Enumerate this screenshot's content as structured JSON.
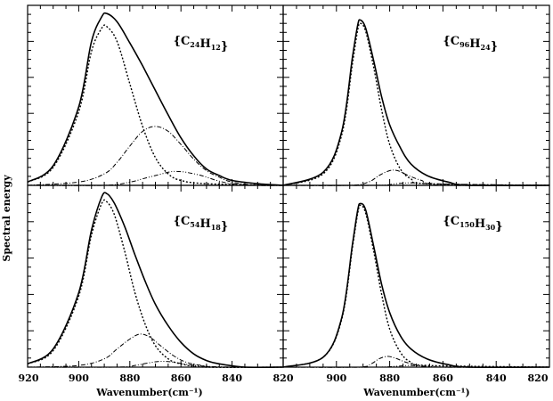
{
  "chart_data": {
    "type": "line",
    "xlabel": "Wavenumber(cm⁻¹)",
    "ylabel": "Spectral energy",
    "x_ticks": [
      920,
      900,
      880,
      860,
      840,
      820
    ],
    "xlim": [
      920,
      820
    ],
    "ylim": [
      0,
      1.1
    ],
    "grid": false,
    "line_styles": [
      "solid",
      "dotted",
      "dash-dot",
      "dash-dot-dot"
    ],
    "panels": [
      {
        "id": "top-left",
        "label_prefix": "{C",
        "label_c": "24",
        "label_mid": "H",
        "label_h": "12",
        "label_suffix": "}",
        "series": [
          {
            "style": "solid",
            "points": [
              [
                920,
                0.02
              ],
              [
                910,
                0.12
              ],
              [
                900,
                0.48
              ],
              [
                895,
                0.88
              ],
              [
                891,
                1.03
              ],
              [
                889,
                1.05
              ],
              [
                885,
                1.0
              ],
              [
                880,
                0.87
              ],
              [
                875,
                0.73
              ],
              [
                870,
                0.58
              ],
              [
                865,
                0.43
              ],
              [
                860,
                0.29
              ],
              [
                855,
                0.18
              ],
              [
                850,
                0.1
              ],
              [
                845,
                0.06
              ],
              [
                840,
                0.03
              ],
              [
                830,
                0.01
              ],
              [
                820,
                0.0
              ]
            ]
          },
          {
            "style": "dotted",
            "points": [
              [
                920,
                0.02
              ],
              [
                910,
                0.11
              ],
              [
                900,
                0.45
              ],
              [
                895,
                0.82
              ],
              [
                891,
                0.96
              ],
              [
                889,
                0.97
              ],
              [
                885,
                0.88
              ],
              [
                880,
                0.62
              ],
              [
                875,
                0.36
              ],
              [
                870,
                0.17
              ],
              [
                865,
                0.07
              ],
              [
                860,
                0.03
              ],
              [
                850,
                0.01
              ],
              [
                820,
                0.0
              ]
            ]
          },
          {
            "style": "dash-dot",
            "points": [
              [
                920,
                0.0
              ],
              [
                900,
                0.02
              ],
              [
                890,
                0.07
              ],
              [
                885,
                0.14
              ],
              [
                880,
                0.24
              ],
              [
                875,
                0.33
              ],
              [
                870,
                0.36
              ],
              [
                865,
                0.33
              ],
              [
                860,
                0.25
              ],
              [
                855,
                0.16
              ],
              [
                850,
                0.09
              ],
              [
                845,
                0.05
              ],
              [
                840,
                0.02
              ],
              [
                830,
                0.0
              ],
              [
                820,
                0.0
              ]
            ]
          },
          {
            "style": "dash-dot-dot",
            "points": [
              [
                920,
                0.0
              ],
              [
                890,
                0.0
              ],
              [
                880,
                0.02
              ],
              [
                875,
                0.04
              ],
              [
                870,
                0.06
              ],
              [
                865,
                0.08
              ],
              [
                862,
                0.085
              ],
              [
                858,
                0.08
              ],
              [
                852,
                0.06
              ],
              [
                846,
                0.03
              ],
              [
                840,
                0.01
              ],
              [
                830,
                0.0
              ],
              [
                820,
                0.0
              ]
            ]
          }
        ]
      },
      {
        "id": "top-right",
        "label_prefix": "{C",
        "label_c": "96",
        "label_mid": "H",
        "label_h": "24",
        "label_suffix": "}",
        "series": [
          {
            "style": "solid",
            "points": [
              [
                920,
                0.0
              ],
              [
                905,
                0.08
              ],
              [
                898,
                0.33
              ],
              [
                894,
                0.78
              ],
              [
                892,
                0.98
              ],
              [
                891,
                1.01
              ],
              [
                889,
                0.96
              ],
              [
                886,
                0.76
              ],
              [
                883,
                0.54
              ],
              [
                880,
                0.37
              ],
              [
                876,
                0.23
              ],
              [
                872,
                0.13
              ],
              [
                866,
                0.06
              ],
              [
                858,
                0.02
              ],
              [
                850,
                0.0
              ],
              [
                820,
                0.0
              ]
            ]
          },
          {
            "style": "dotted",
            "points": [
              [
                920,
                0.0
              ],
              [
                905,
                0.07
              ],
              [
                898,
                0.31
              ],
              [
                894,
                0.74
              ],
              [
                892,
                0.95
              ],
              [
                891,
                0.99
              ],
              [
                889,
                0.94
              ],
              [
                886,
                0.72
              ],
              [
                883,
                0.46
              ],
              [
                880,
                0.25
              ],
              [
                876,
                0.1
              ],
              [
                872,
                0.04
              ],
              [
                866,
                0.01
              ],
              [
                820,
                0.0
              ]
            ]
          },
          {
            "style": "dash-dot",
            "points": [
              [
                920,
                0.0
              ],
              [
                895,
                0.0
              ],
              [
                888,
                0.02
              ],
              [
                884,
                0.06
              ],
              [
                880,
                0.09
              ],
              [
                877,
                0.09
              ],
              [
                873,
                0.06
              ],
              [
                868,
                0.03
              ],
              [
                862,
                0.01
              ],
              [
                820,
                0.0
              ]
            ]
          },
          {
            "style": "dash-dot-dot",
            "points": [
              [
                920,
                0.0
              ],
              [
                885,
                0.0
              ],
              [
                878,
                0.01
              ],
              [
                872,
                0.015
              ],
              [
                866,
                0.01
              ],
              [
                858,
                0.0
              ],
              [
                820,
                0.0
              ]
            ]
          }
        ]
      },
      {
        "id": "bottom-left",
        "label_prefix": "{C",
        "label_c": "54",
        "label_mid": "H",
        "label_h": "18",
        "label_suffix": "}",
        "series": [
          {
            "style": "solid",
            "points": [
              [
                920,
                0.02
              ],
              [
                910,
                0.11
              ],
              [
                900,
                0.45
              ],
              [
                895,
                0.83
              ],
              [
                891,
                1.03
              ],
              [
                889,
                1.05
              ],
              [
                886,
                0.99
              ],
              [
                882,
                0.85
              ],
              [
                878,
                0.68
              ],
              [
                874,
                0.52
              ],
              [
                870,
                0.38
              ],
              [
                865,
                0.25
              ],
              [
                860,
                0.15
              ],
              [
                855,
                0.08
              ],
              [
                850,
                0.04
              ],
              [
                845,
                0.02
              ],
              [
                835,
                0.0
              ],
              [
                820,
                0.0
              ]
            ]
          },
          {
            "style": "dotted",
            "points": [
              [
                920,
                0.02
              ],
              [
                910,
                0.1
              ],
              [
                900,
                0.43
              ],
              [
                895,
                0.8
              ],
              [
                891,
                0.99
              ],
              [
                889,
                1.0
              ],
              [
                886,
                0.92
              ],
              [
                882,
                0.7
              ],
              [
                878,
                0.45
              ],
              [
                874,
                0.26
              ],
              [
                870,
                0.13
              ],
              [
                865,
                0.05
              ],
              [
                860,
                0.02
              ],
              [
                850,
                0.0
              ],
              [
                820,
                0.0
              ]
            ]
          },
          {
            "style": "dash-dot",
            "points": [
              [
                920,
                0.0
              ],
              [
                900,
                0.01
              ],
              [
                890,
                0.05
              ],
              [
                885,
                0.11
              ],
              [
                880,
                0.17
              ],
              [
                876,
                0.2
              ],
              [
                872,
                0.18
              ],
              [
                868,
                0.13
              ],
              [
                863,
                0.07
              ],
              [
                858,
                0.03
              ],
              [
                852,
                0.01
              ],
              [
                845,
                0.0
              ],
              [
                820,
                0.0
              ]
            ]
          },
          {
            "style": "dash-dot-dot",
            "points": [
              [
                920,
                0.0
              ],
              [
                885,
                0.0
              ],
              [
                878,
                0.01
              ],
              [
                873,
                0.025
              ],
              [
                868,
                0.035
              ],
              [
                863,
                0.03
              ],
              [
                857,
                0.015
              ],
              [
                850,
                0.005
              ],
              [
                840,
                0.0
              ],
              [
                820,
                0.0
              ]
            ]
          }
        ]
      },
      {
        "id": "bottom-right",
        "label_prefix": "{C",
        "label_c": "150",
        "label_mid": "H",
        "label_h": "30",
        "label_suffix": "}",
        "series": [
          {
            "style": "solid",
            "points": [
              [
                920,
                0.0
              ],
              [
                905,
                0.06
              ],
              [
                898,
                0.3
              ],
              [
                894,
                0.74
              ],
              [
                892,
                0.95
              ],
              [
                891,
                0.99
              ],
              [
                889,
                0.95
              ],
              [
                886,
                0.73
              ],
              [
                883,
                0.5
              ],
              [
                880,
                0.33
              ],
              [
                876,
                0.19
              ],
              [
                872,
                0.11
              ],
              [
                866,
                0.05
              ],
              [
                858,
                0.015
              ],
              [
                850,
                0.0
              ],
              [
                820,
                0.0
              ]
            ]
          },
          {
            "style": "dotted",
            "points": [
              [
                920,
                0.0
              ],
              [
                905,
                0.06
              ],
              [
                898,
                0.29
              ],
              [
                894,
                0.72
              ],
              [
                892,
                0.93
              ],
              [
                891,
                0.98
              ],
              [
                889,
                0.93
              ],
              [
                886,
                0.7
              ],
              [
                883,
                0.44
              ],
              [
                880,
                0.23
              ],
              [
                876,
                0.09
              ],
              [
                872,
                0.03
              ],
              [
                866,
                0.01
              ],
              [
                820,
                0.0
              ]
            ]
          },
          {
            "style": "dash-dot",
            "points": [
              [
                920,
                0.0
              ],
              [
                892,
                0.0
              ],
              [
                887,
                0.02
              ],
              [
                884,
                0.05
              ],
              [
                881,
                0.065
              ],
              [
                878,
                0.055
              ],
              [
                874,
                0.03
              ],
              [
                869,
                0.01
              ],
              [
                862,
                0.0
              ],
              [
                820,
                0.0
              ]
            ]
          },
          {
            "style": "dash-dot-dot",
            "points": [
              [
                920,
                0.0
              ],
              [
                885,
                0.0
              ],
              [
                878,
                0.005
              ],
              [
                872,
                0.01
              ],
              [
                866,
                0.005
              ],
              [
                858,
                0.0
              ],
              [
                820,
                0.0
              ]
            ]
          }
        ]
      }
    ]
  }
}
